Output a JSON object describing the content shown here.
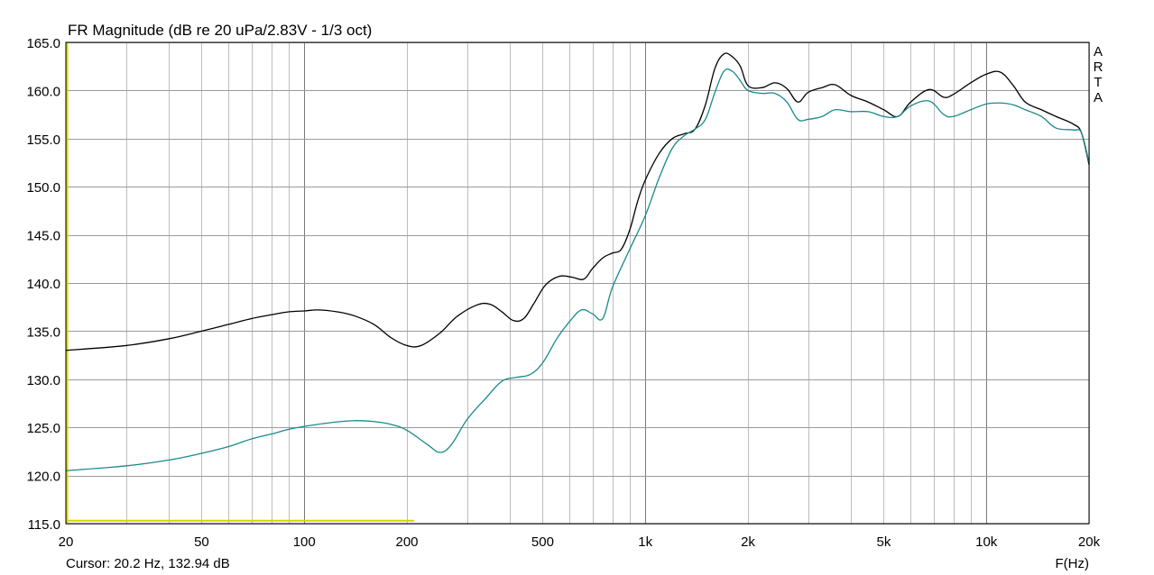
{
  "chart_data": {
    "type": "line",
    "title": "FR Magnitude (dB re 20 uPa/2.83V - 1/3 oct)",
    "xlabel": "F(Hz)",
    "ylabel": "",
    "x_scale": "log",
    "xlim": [
      20,
      20000
    ],
    "ylim": [
      115,
      165
    ],
    "grid": true,
    "brand": "ARTA",
    "cursor_text": "Cursor: 20.2 Hz, 132.94 dB",
    "x_ticks": [
      {
        "value": 20,
        "label": "20"
      },
      {
        "value": 50,
        "label": "50"
      },
      {
        "value": 100,
        "label": "100"
      },
      {
        "value": 200,
        "label": "200"
      },
      {
        "value": 500,
        "label": "500"
      },
      {
        "value": 1000,
        "label": "1k"
      },
      {
        "value": 2000,
        "label": "2k"
      },
      {
        "value": 5000,
        "label": "5k"
      },
      {
        "value": 10000,
        "label": "10k"
      },
      {
        "value": 20000,
        "label": "20k"
      }
    ],
    "y_ticks": [
      {
        "value": 115,
        "label": "115.0"
      },
      {
        "value": 120,
        "label": "120.0"
      },
      {
        "value": 125,
        "label": "125.0"
      },
      {
        "value": 130,
        "label": "130.0"
      },
      {
        "value": 135,
        "label": "135.0"
      },
      {
        "value": 140,
        "label": "140.0"
      },
      {
        "value": 145,
        "label": "145.0"
      },
      {
        "value": 150,
        "label": "150.0"
      },
      {
        "value": 155,
        "label": "155.0"
      },
      {
        "value": 160,
        "label": "160.0"
      },
      {
        "value": 165,
        "label": "165.0"
      }
    ],
    "marker": {
      "x_range": [
        20,
        210
      ],
      "y": 115.3,
      "color": "#d4d400"
    },
    "series": [
      {
        "color": "#000000",
        "points": [
          [
            20,
            133.0
          ],
          [
            30,
            133.5
          ],
          [
            40,
            134.2
          ],
          [
            50,
            135.0
          ],
          [
            60,
            135.7
          ],
          [
            70,
            136.3
          ],
          [
            80,
            136.7
          ],
          [
            90,
            137.0
          ],
          [
            100,
            137.1
          ],
          [
            110,
            137.2
          ],
          [
            125,
            137.0
          ],
          [
            140,
            136.6
          ],
          [
            160,
            135.7
          ],
          [
            180,
            134.3
          ],
          [
            200,
            133.5
          ],
          [
            220,
            133.5
          ],
          [
            250,
            134.8
          ],
          [
            280,
            136.5
          ],
          [
            320,
            137.7
          ],
          [
            350,
            137.8
          ],
          [
            380,
            137.0
          ],
          [
            410,
            136.1
          ],
          [
            440,
            136.3
          ],
          [
            470,
            137.8
          ],
          [
            510,
            139.8
          ],
          [
            560,
            140.7
          ],
          [
            610,
            140.6
          ],
          [
            660,
            140.4
          ],
          [
            700,
            141.5
          ],
          [
            750,
            142.6
          ],
          [
            800,
            143.1
          ],
          [
            850,
            143.5
          ],
          [
            900,
            145.5
          ],
          [
            950,
            148.5
          ],
          [
            1000,
            150.7
          ],
          [
            1100,
            153.5
          ],
          [
            1200,
            155.0
          ],
          [
            1300,
            155.5
          ],
          [
            1400,
            156.0
          ],
          [
            1500,
            158.5
          ],
          [
            1600,
            162.3
          ],
          [
            1700,
            163.8
          ],
          [
            1800,
            163.5
          ],
          [
            1900,
            162.5
          ],
          [
            2000,
            160.5
          ],
          [
            2200,
            160.3
          ],
          [
            2400,
            160.8
          ],
          [
            2600,
            160.2
          ],
          [
            2800,
            158.8
          ],
          [
            3000,
            159.8
          ],
          [
            3300,
            160.3
          ],
          [
            3600,
            160.6
          ],
          [
            4000,
            159.5
          ],
          [
            4500,
            158.8
          ],
          [
            5000,
            158.0
          ],
          [
            5500,
            157.3
          ],
          [
            6000,
            158.8
          ],
          [
            6800,
            160.1
          ],
          [
            7500,
            159.3
          ],
          [
            8000,
            159.6
          ],
          [
            9000,
            160.8
          ],
          [
            10000,
            161.7
          ],
          [
            11000,
            161.9
          ],
          [
            12000,
            160.5
          ],
          [
            13000,
            158.8
          ],
          [
            14500,
            158.0
          ],
          [
            16000,
            157.3
          ],
          [
            18000,
            156.5
          ],
          [
            19000,
            155.6
          ],
          [
            20000,
            152.3
          ]
        ]
      },
      {
        "color": "#1a8a8a",
        "points": [
          [
            20,
            120.5
          ],
          [
            30,
            121.0
          ],
          [
            40,
            121.6
          ],
          [
            50,
            122.3
          ],
          [
            60,
            123.0
          ],
          [
            70,
            123.8
          ],
          [
            80,
            124.3
          ],
          [
            90,
            124.8
          ],
          [
            100,
            125.1
          ],
          [
            120,
            125.5
          ],
          [
            140,
            125.7
          ],
          [
            160,
            125.6
          ],
          [
            180,
            125.3
          ],
          [
            200,
            124.7
          ],
          [
            230,
            123.2
          ],
          [
            250,
            122.4
          ],
          [
            270,
            123.2
          ],
          [
            300,
            125.8
          ],
          [
            340,
            128.0
          ],
          [
            380,
            129.8
          ],
          [
            420,
            130.2
          ],
          [
            460,
            130.5
          ],
          [
            500,
            131.7
          ],
          [
            550,
            134.2
          ],
          [
            600,
            136.0
          ],
          [
            650,
            137.2
          ],
          [
            700,
            136.8
          ],
          [
            750,
            136.3
          ],
          [
            800,
            139.5
          ],
          [
            900,
            143.5
          ],
          [
            1000,
            147.0
          ],
          [
            1100,
            151.0
          ],
          [
            1200,
            154.0
          ],
          [
            1300,
            155.3
          ],
          [
            1400,
            156.0
          ],
          [
            1500,
            157.0
          ],
          [
            1600,
            159.8
          ],
          [
            1700,
            162.0
          ],
          [
            1800,
            162.0
          ],
          [
            1900,
            161.0
          ],
          [
            2000,
            160.0
          ],
          [
            2200,
            159.7
          ],
          [
            2400,
            159.7
          ],
          [
            2600,
            158.8
          ],
          [
            2800,
            157.0
          ],
          [
            3000,
            157.0
          ],
          [
            3300,
            157.3
          ],
          [
            3600,
            158.0
          ],
          [
            4000,
            157.8
          ],
          [
            4500,
            157.8
          ],
          [
            5000,
            157.3
          ],
          [
            5500,
            157.3
          ],
          [
            6000,
            158.4
          ],
          [
            6800,
            158.9
          ],
          [
            7500,
            157.5
          ],
          [
            8000,
            157.3
          ],
          [
            9000,
            158.0
          ],
          [
            10000,
            158.6
          ],
          [
            11000,
            158.7
          ],
          [
            12000,
            158.5
          ],
          [
            13000,
            158.0
          ],
          [
            14500,
            157.3
          ],
          [
            16000,
            156.1
          ],
          [
            18000,
            155.9
          ],
          [
            19000,
            155.6
          ],
          [
            20000,
            152.5
          ]
        ]
      }
    ]
  }
}
